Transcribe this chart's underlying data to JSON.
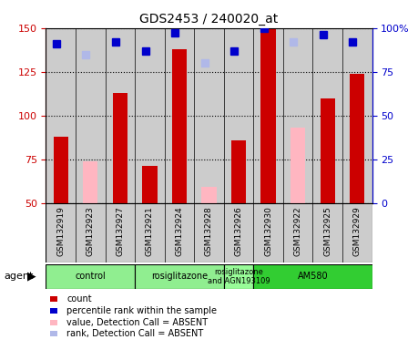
{
  "title": "GDS2453 / 240020_at",
  "samples": [
    "GSM132919",
    "GSM132923",
    "GSM132927",
    "GSM132921",
    "GSM132924",
    "GSM132928",
    "GSM132926",
    "GSM132930",
    "GSM132922",
    "GSM132925",
    "GSM132929"
  ],
  "count_values": [
    88,
    null,
    113,
    71,
    138,
    null,
    86,
    150,
    null,
    110,
    124
  ],
  "count_absent": [
    null,
    74,
    null,
    null,
    null,
    59,
    null,
    null,
    93,
    null,
    null
  ],
  "rank_values": [
    91,
    null,
    92,
    87,
    97,
    null,
    87,
    100,
    null,
    96,
    92
  ],
  "rank_absent": [
    null,
    85,
    null,
    null,
    null,
    80,
    null,
    null,
    92,
    null,
    null
  ],
  "groups": [
    {
      "label": "control",
      "start": 0,
      "end": 3,
      "color": "#90ee90"
    },
    {
      "label": "rosiglitazone",
      "start": 3,
      "end": 6,
      "color": "#90ee90"
    },
    {
      "label": "rosiglitazone\nand AGN193109",
      "start": 6,
      "end": 7,
      "color": "#98fb98"
    },
    {
      "label": "AM580",
      "start": 7,
      "end": 11,
      "color": "#32cd32"
    }
  ],
  "ylim_left": [
    50,
    150
  ],
  "ylim_right": [
    0,
    100
  ],
  "yticks_left": [
    50,
    75,
    100,
    125,
    150
  ],
  "yticks_right": [
    0,
    25,
    50,
    75,
    100
  ],
  "ytick_labels_right": [
    "0",
    "25",
    "50",
    "75",
    "100%"
  ],
  "color_count": "#cc0000",
  "color_rank": "#0000cc",
  "color_count_absent": "#ffb6c1",
  "color_rank_absent": "#b0b8e8",
  "bar_width": 0.5,
  "marker_size": 6,
  "legend_items": [
    {
      "color": "#cc0000",
      "label": "count"
    },
    {
      "color": "#0000cc",
      "label": "percentile rank within the sample"
    },
    {
      "color": "#ffb6c1",
      "label": "value, Detection Call = ABSENT"
    },
    {
      "color": "#b0b8e8",
      "label": "rank, Detection Call = ABSENT"
    }
  ]
}
